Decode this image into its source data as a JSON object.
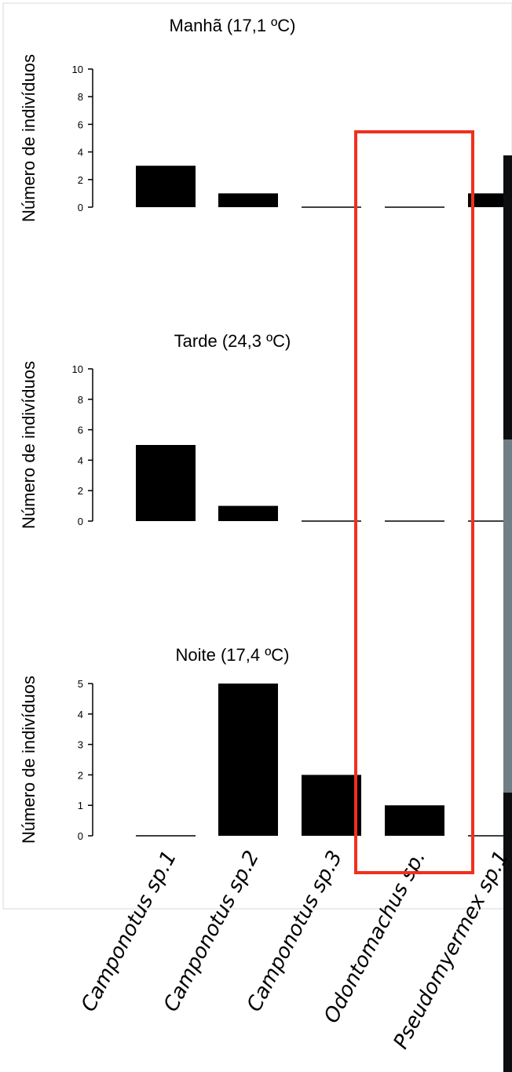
{
  "colors": {
    "bar": "#000000",
    "axis": "#000000",
    "highlight": "#f0301e",
    "frame": "#d9d9d9",
    "photo_dark": "#0c0e10",
    "photo_mid": "#6f7f86"
  },
  "chart_data": [
    {
      "type": "bar",
      "title": "Manhã (17,1 ºC)",
      "ylabel": "Número de indivíduos",
      "ylim": [
        0,
        10
      ],
      "yticks": [
        "0",
        "2",
        "4",
        "6",
        "8",
        "10"
      ],
      "categories": [
        "Camponotus sp.1",
        "Camponotus sp.2",
        "Camponotus sp.3",
        "Odontomachus sp.",
        "Pseudomyermex sp.1",
        "Pseudomyrmex"
      ],
      "values": [
        3,
        1,
        0,
        0,
        1,
        null
      ]
    },
    {
      "type": "bar",
      "title": "Tarde (24,3 ºC)",
      "ylabel": "Número de indivíduos",
      "ylim": [
        0,
        10
      ],
      "yticks": [
        "0",
        "2",
        "4",
        "6",
        "8",
        "10"
      ],
      "categories": [
        "Camponotus sp.1",
        "Camponotus sp.2",
        "Camponotus sp.3",
        "Odontomachus sp.",
        "Pseudomyermex sp.1",
        "Pseudomyrmex"
      ],
      "values": [
        5,
        1,
        0,
        0,
        0,
        null
      ]
    },
    {
      "type": "bar",
      "title": "Noite (17,4 ºC)",
      "ylabel": "Número de indivíduos",
      "ylim": [
        0,
        5
      ],
      "yticks": [
        "0",
        "1",
        "2",
        "3",
        "4",
        "5"
      ],
      "categories": [
        "Camponotus sp.1",
        "Camponotus sp.2",
        "Camponotus sp.3",
        "Odontomachus sp.",
        "Pseudomyermex sp.1",
        "Pseudomyrmex"
      ],
      "values": [
        0,
        5,
        2,
        1,
        0,
        null
      ],
      "xticklabels": [
        "Camponotus sp.1",
        "Camponotus sp.2",
        "Camponotus sp.3",
        "Odontomachus sp.",
        "Pseudomyermex sp.1",
        "Pseudo"
      ]
    }
  ]
}
